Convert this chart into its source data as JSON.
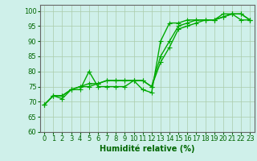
{
  "title": "",
  "xlabel": "Humidité relative (%)",
  "ylabel": "",
  "bg_color": "#cff0ea",
  "grid_color": "#aaccaa",
  "line_color": "#00aa00",
  "ylim": [
    60,
    102
  ],
  "xlim": [
    -0.5,
    23.5
  ],
  "yticks": [
    60,
    65,
    70,
    75,
    80,
    85,
    90,
    95,
    100
  ],
  "xticks": [
    0,
    1,
    2,
    3,
    4,
    5,
    6,
    7,
    8,
    9,
    10,
    11,
    12,
    13,
    14,
    15,
    16,
    17,
    18,
    19,
    20,
    21,
    22,
    23
  ],
  "series": [
    [
      69,
      72,
      71,
      74,
      74,
      80,
      75,
      75,
      75,
      75,
      77,
      74,
      73,
      90,
      96,
      96,
      97,
      97,
      97,
      97,
      99,
      99,
      97,
      97
    ],
    [
      69,
      72,
      72,
      74,
      75,
      75,
      76,
      77,
      77,
      77,
      77,
      77,
      75,
      83,
      88,
      94,
      95,
      96,
      97,
      97,
      98,
      99,
      99,
      97
    ],
    [
      69,
      72,
      72,
      74,
      75,
      76,
      76,
      77,
      77,
      77,
      77,
      77,
      75,
      85,
      90,
      95,
      96,
      97,
      97,
      97,
      98,
      99,
      99,
      97
    ]
  ],
  "marker": "+",
  "markersize": 4,
  "linewidth": 1.0,
  "xlabel_fontsize": 7,
  "tick_fontsize": 6,
  "fig_width": 3.2,
  "fig_height": 2.0,
  "dpi": 100
}
